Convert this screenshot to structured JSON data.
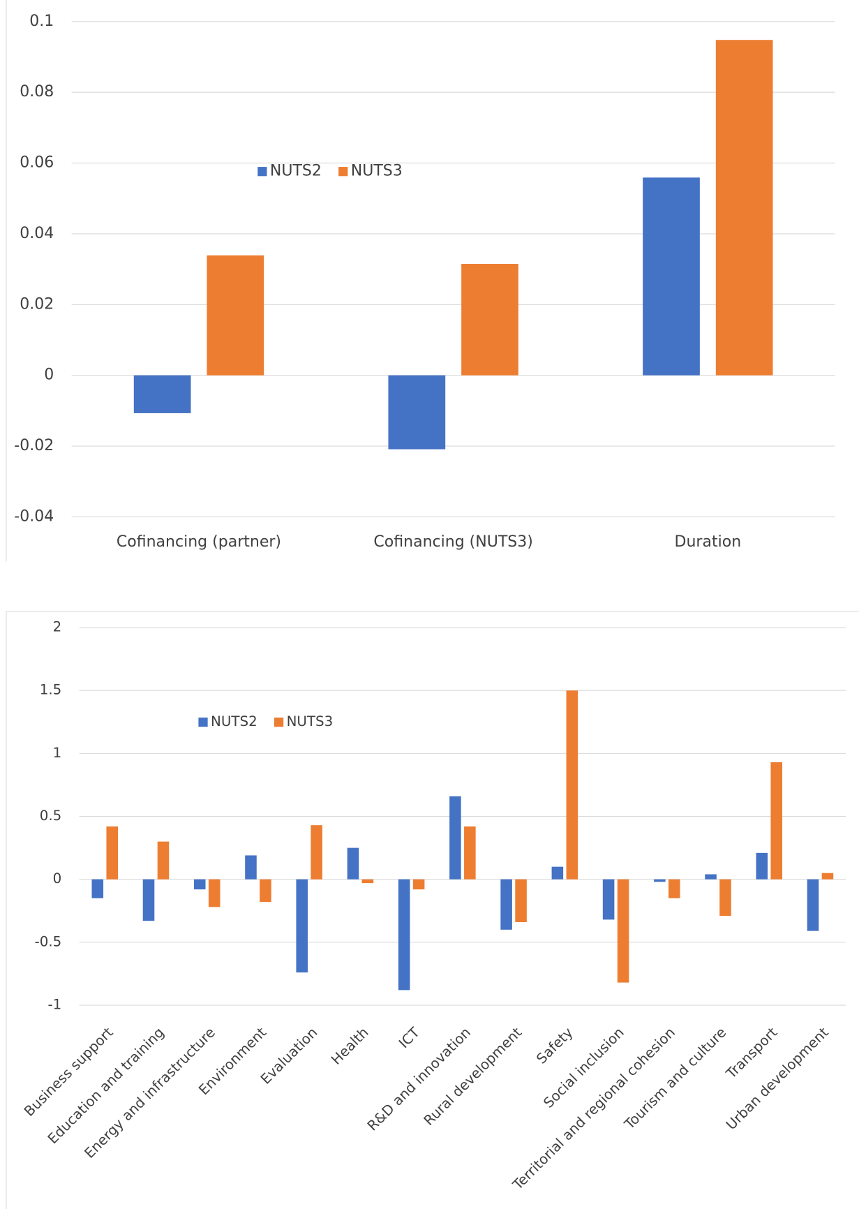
{
  "chart_data": [
    {
      "type": "bar",
      "categories": [
        "Cofinancing (partner)",
        "Cofinancing (NUTS3)",
        "Duration"
      ],
      "series": [
        {
          "name": "NUTS2",
          "color": "#4472c4",
          "values": [
            -0.0107,
            -0.0209,
            0.0559
          ]
        },
        {
          "name": "NUTS3",
          "color": "#ed7d31",
          "values": [
            0.0339,
            0.0315,
            0.0948
          ]
        }
      ],
      "ylim": [
        -0.04,
        0.1
      ],
      "yticks": [
        -0.04,
        -0.02,
        0,
        0.02,
        0.04,
        0.06,
        0.08,
        0.1
      ],
      "grid": true,
      "legend": "upper center"
    },
    {
      "type": "bar",
      "categories": [
        "Business support",
        "Education and training",
        "Energy and infrastructure",
        "Environment",
        "Evaluation",
        "Health",
        "ICT",
        "R&D and innovation",
        "Rural development",
        "Safety",
        "Social inclusion",
        "Territorial and regional cohesion",
        "Tourism and culture",
        "Transport",
        "Urban development"
      ],
      "series": [
        {
          "name": "NUTS2",
          "color": "#4472c4",
          "values": [
            -0.15,
            -0.33,
            -0.08,
            0.19,
            -0.74,
            0.25,
            -0.88,
            0.66,
            -0.4,
            0.1,
            -0.32,
            -0.02,
            0.04,
            0.21,
            -0.41
          ]
        },
        {
          "name": "NUTS3",
          "color": "#ed7d31",
          "values": [
            0.42,
            0.3,
            -0.22,
            -0.18,
            0.43,
            -0.03,
            -0.08,
            0.42,
            -0.34,
            1.5,
            -0.82,
            -0.15,
            -0.29,
            0.93,
            0.05
          ]
        }
      ],
      "ylim": [
        -1,
        2
      ],
      "yticks": [
        -1,
        -0.5,
        0,
        0.5,
        1,
        1.5,
        2
      ],
      "grid": true,
      "legend": "upper left"
    }
  ]
}
